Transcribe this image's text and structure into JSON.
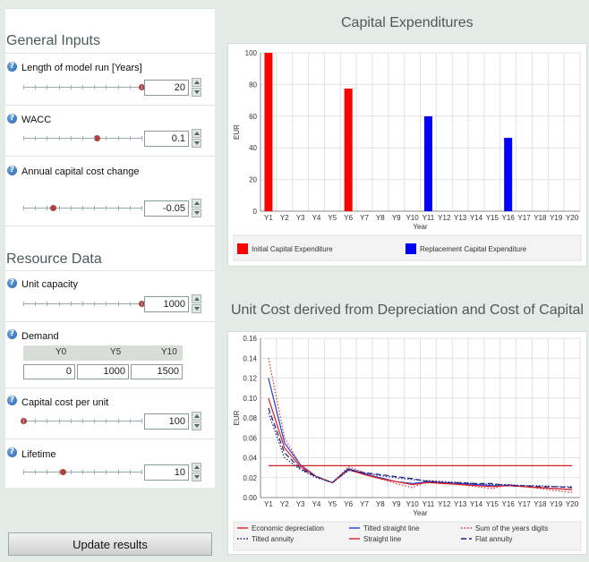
{
  "left": {
    "general_title": "General Inputs",
    "resource_title": "Resource Data",
    "inputs": {
      "run": {
        "label": "Length of model run [Years]",
        "value": "20",
        "level": 1.0
      },
      "wacc": {
        "label": "WACC",
        "value": "0.1",
        "level": 0.62
      },
      "capchange": {
        "label": "Annual capital cost change",
        "value": "-0.05",
        "level": 0.25
      },
      "capacity": {
        "label": "Unit capacity",
        "value": "1000",
        "level": 1.0
      },
      "costunit": {
        "label": "Capital cost per unit",
        "value": "100",
        "level": 0.0
      },
      "lifetime": {
        "label": "Lifetime",
        "value": "10",
        "level": 0.33
      }
    },
    "demand": {
      "label": "Demand",
      "headers": [
        "Y0",
        "Y5",
        "Y10"
      ],
      "values": [
        "0",
        "1000",
        "1500"
      ]
    },
    "help_icon": "question-circle-icon",
    "update_label": "Update results"
  },
  "charts": {
    "capex_title": "Capital Expenditures",
    "unitcost_title": "Unit Cost derived from Depreciation and Cost of Capital"
  },
  "chart_data": [
    {
      "type": "bar",
      "categories": [
        "Y1",
        "Y2",
        "Y3",
        "Y4",
        "Y5",
        "Y6",
        "Y7",
        "Y8",
        "Y9",
        "Y10",
        "Y11",
        "Y12",
        "Y13",
        "Y14",
        "Y15",
        "Y16",
        "Y17",
        "Y18",
        "Y19",
        "Y20"
      ],
      "series": [
        {
          "name": "Initial Capital Expenditure",
          "color": "#ff0000",
          "values": [
            100,
            0,
            0,
            0,
            0,
            77.4,
            0,
            0,
            0,
            0,
            0,
            0,
            0,
            0,
            0,
            0,
            0,
            0,
            0,
            0
          ]
        },
        {
          "name": "Replacement Capital Expenditure",
          "color": "#0000ff",
          "values": [
            0,
            0,
            0,
            0,
            0,
            0,
            0,
            0,
            0,
            0,
            59.9,
            0,
            0,
            0,
            0,
            46.3,
            0,
            0,
            0,
            0
          ]
        }
      ],
      "xlabel": "Year",
      "ylabel": "EUR",
      "ylim": [
        0,
        100
      ],
      "yticks": [
        0,
        20,
        40,
        60,
        80,
        100
      ],
      "grid": true,
      "legend": "bottom"
    },
    {
      "type": "line",
      "x": [
        "Y1",
        "Y2",
        "Y3",
        "Y4",
        "Y5",
        "Y6",
        "Y7",
        "Y8",
        "Y9",
        "Y10",
        "Y11",
        "Y12",
        "Y13",
        "Y14",
        "Y15",
        "Y16",
        "Y17",
        "Y18",
        "Y19",
        "Y20"
      ],
      "series": [
        {
          "name": "Economic depreciation",
          "color": "#d42020",
          "dash": "solid",
          "values": [
            0.032,
            0.032,
            0.032,
            0.032,
            0.032,
            0.032,
            0.032,
            0.032,
            0.032,
            0.032,
            0.032,
            0.032,
            0.032,
            0.032,
            0.032,
            0.032,
            0.032,
            0.032,
            0.032,
            0.032
          ]
        },
        {
          "name": "Tilted straight line",
          "color": "#2040d0",
          "dash": "solid",
          "values": [
            0.12,
            0.055,
            0.033,
            0.021,
            0.015,
            0.029,
            0.024,
            0.02,
            0.016,
            0.014,
            0.016,
            0.015,
            0.014,
            0.013,
            0.012,
            0.012,
            0.011,
            0.01,
            0.009,
            0.008
          ]
        },
        {
          "name": "Sum of the years digits",
          "color": "#e03030",
          "dash": "dot",
          "values": [
            0.14,
            0.06,
            0.033,
            0.021,
            0.015,
            0.031,
            0.025,
            0.019,
            0.014,
            0.01,
            0.017,
            0.015,
            0.013,
            0.011,
            0.009,
            0.013,
            0.011,
            0.009,
            0.007,
            0.005
          ]
        },
        {
          "name": "Tilted annuity",
          "color": "#102090",
          "dash": "dot",
          "values": [
            0.085,
            0.04,
            0.028,
            0.02,
            0.015,
            0.027,
            0.025,
            0.022,
            0.02,
            0.018,
            0.017,
            0.016,
            0.015,
            0.014,
            0.013,
            0.013,
            0.012,
            0.012,
            0.011,
            0.011
          ]
        },
        {
          "name": "Straight line",
          "color": "#e02020",
          "dash": "solid",
          "values": [
            0.1,
            0.05,
            0.031,
            0.021,
            0.015,
            0.028,
            0.023,
            0.019,
            0.016,
            0.013,
            0.015,
            0.014,
            0.013,
            0.012,
            0.011,
            0.012,
            0.011,
            0.01,
            0.009,
            0.008
          ]
        },
        {
          "name": "Flat annuity",
          "color": "#202080",
          "dash": "dash",
          "values": [
            0.09,
            0.045,
            0.029,
            0.021,
            0.015,
            0.028,
            0.025,
            0.023,
            0.021,
            0.019,
            0.016,
            0.015,
            0.015,
            0.014,
            0.014,
            0.012,
            0.012,
            0.011,
            0.011,
            0.01
          ]
        }
      ],
      "xlabel": "Year",
      "ylabel": "EUR",
      "ylim": [
        0,
        0.16
      ],
      "yticks": [
        0.0,
        0.02,
        0.04,
        0.06,
        0.08,
        0.1,
        0.12,
        0.14,
        0.16
      ],
      "grid": true,
      "legend": "bottom"
    }
  ]
}
